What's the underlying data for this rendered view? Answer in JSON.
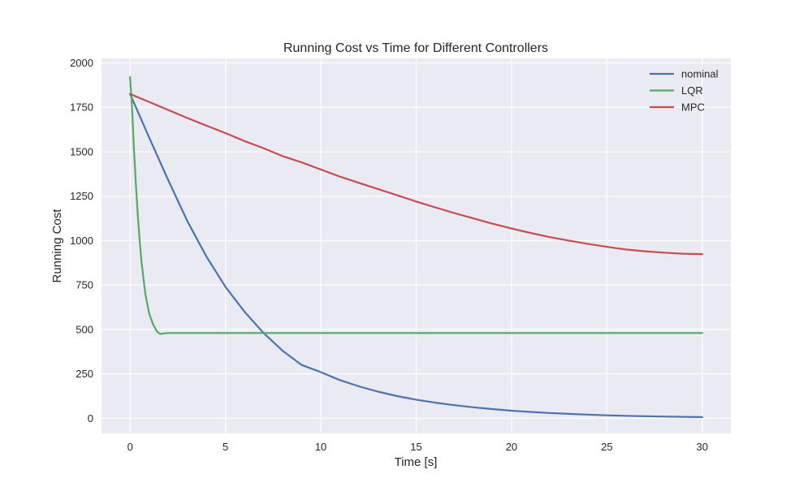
{
  "chart_data": {
    "type": "line",
    "title": "Running Cost vs Time for Different Controllers",
    "xlabel": "Time [s]",
    "ylabel": "Running Cost",
    "xlim": [
      -1.5,
      31.5
    ],
    "ylim": [
      -85,
      2025
    ],
    "xticks": [
      0,
      5,
      10,
      15,
      20,
      25,
      30
    ],
    "yticks": [
      0,
      250,
      500,
      750,
      1000,
      1250,
      1500,
      1750,
      2000
    ],
    "grid": true,
    "legend_position": "top-right",
    "colors": {
      "background": "#eaeaf2",
      "grid": "#ffffff",
      "text": "#262626"
    },
    "series": [
      {
        "name": "nominal",
        "color": "#4c72b0",
        "x": [
          0,
          1,
          2,
          3,
          4,
          5,
          6,
          7,
          8,
          9,
          10,
          11,
          12,
          13,
          14,
          15,
          16,
          17,
          18,
          19,
          20,
          21,
          22,
          23,
          24,
          25,
          26,
          27,
          28,
          29,
          30
        ],
        "y": [
          1825,
          1580,
          1340,
          1110,
          910,
          740,
          600,
          480,
          380,
          300,
          260,
          215,
          180,
          150,
          125,
          105,
          88,
          74,
          62,
          52,
          43,
          36,
          30,
          25,
          21,
          17,
          14,
          12,
          10,
          8,
          7
        ]
      },
      {
        "name": "LQR",
        "color": "#55a868",
        "x": [
          0,
          0.1,
          0.2,
          0.3,
          0.4,
          0.5,
          0.6,
          0.8,
          1.0,
          1.2,
          1.4,
          1.5,
          1.6,
          1.8,
          2.0,
          3,
          5,
          10,
          15,
          20,
          25,
          30
        ],
        "y": [
          1920,
          1750,
          1520,
          1320,
          1150,
          1000,
          880,
          700,
          590,
          530,
          490,
          480,
          475,
          478,
          480,
          480,
          480,
          480,
          480,
          480,
          480,
          480
        ]
      },
      {
        "name": "MPC",
        "color": "#c44e52",
        "x": [
          0,
          1,
          2,
          3,
          4,
          5,
          6,
          7,
          8,
          9,
          10,
          11,
          12,
          13,
          14,
          15,
          16,
          17,
          18,
          19,
          20,
          21,
          22,
          23,
          24,
          25,
          26,
          27,
          28,
          29,
          30
        ],
        "y": [
          1825,
          1780,
          1735,
          1690,
          1647,
          1605,
          1560,
          1520,
          1475,
          1440,
          1400,
          1360,
          1325,
          1290,
          1255,
          1220,
          1187,
          1155,
          1125,
          1095,
          1068,
          1043,
          1020,
          1000,
          982,
          965,
          950,
          940,
          932,
          926,
          924
        ]
      }
    ]
  }
}
